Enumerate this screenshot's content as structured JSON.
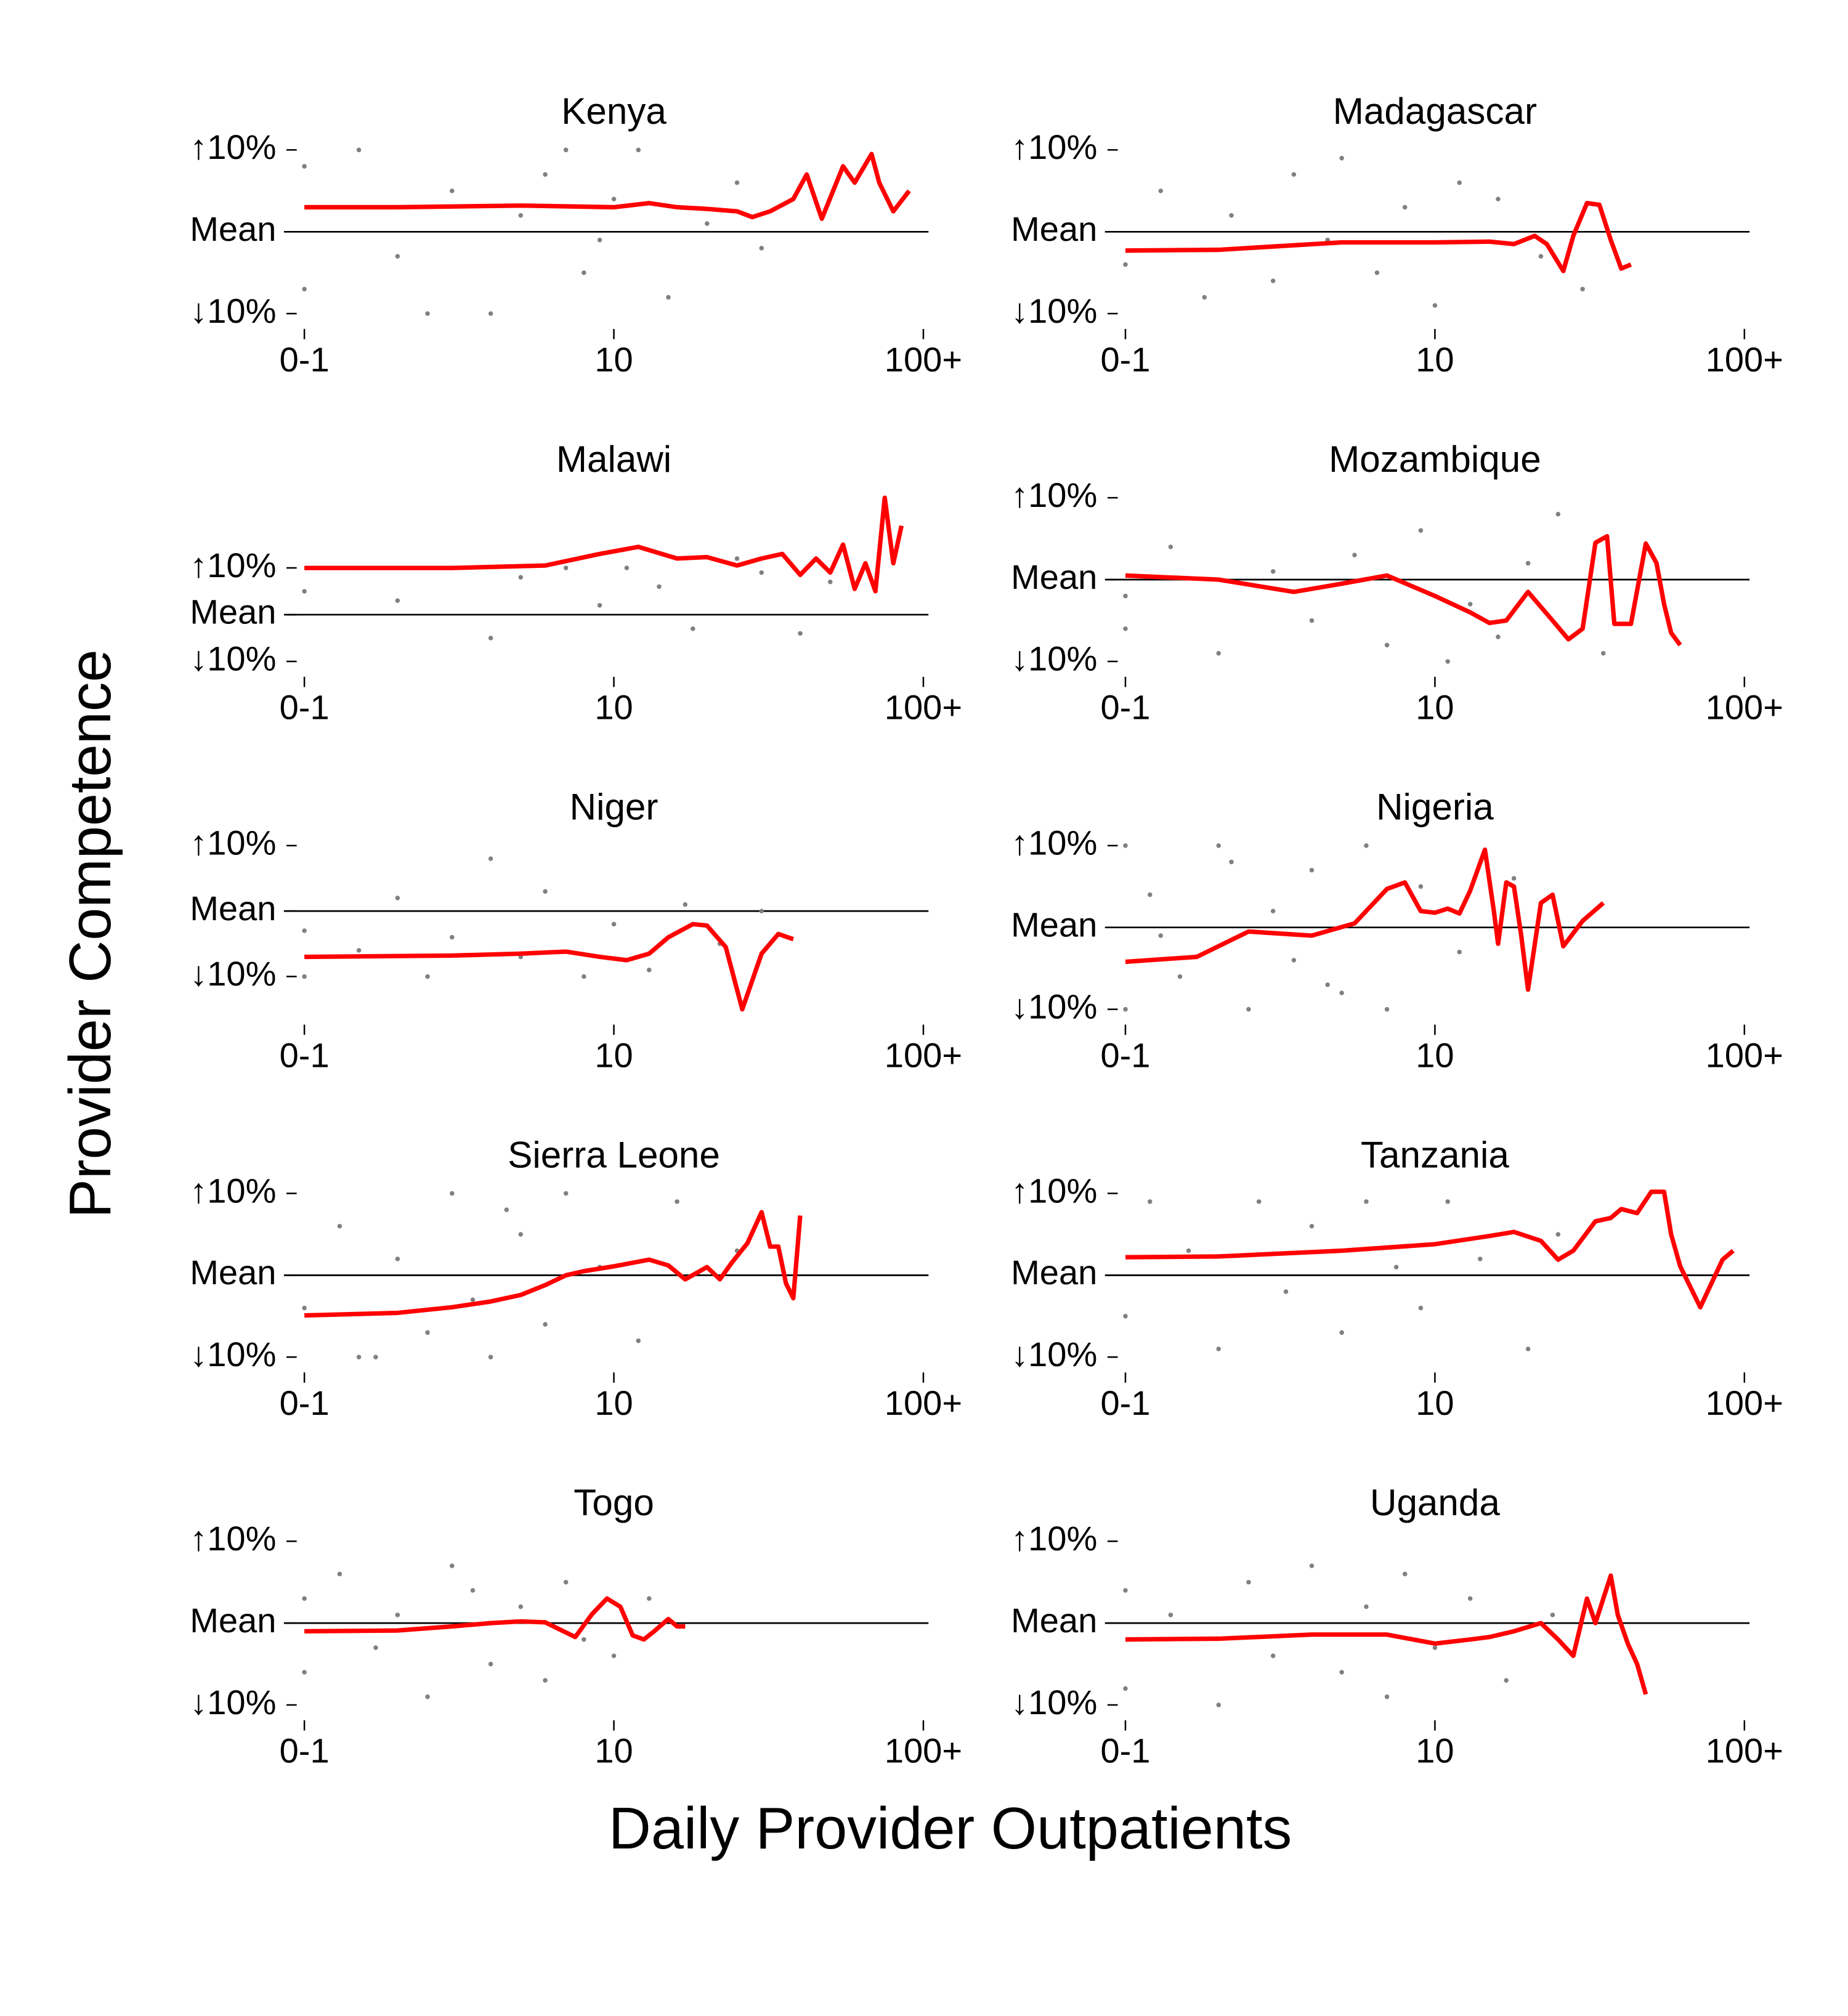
{
  "xlabel": "Daily Provider Outpatients",
  "ylabel": "Provider Competence",
  "chart_data": [
    {
      "type": "scatter",
      "title": "Kenya",
      "xscale": "log",
      "xlim": [
        1,
        100
      ],
      "ylim": [
        -10,
        10
      ],
      "xticks": [
        {
          "value": 1,
          "label": "0-1"
        },
        10,
        {
          "value": 100,
          "label": "100+"
        }
      ],
      "yticks": [
        {
          "value": 10,
          "label": "↑10%"
        },
        {
          "value": 0,
          "label": "Mean"
        },
        {
          "value": -10,
          "label": "↓10%"
        }
      ],
      "reference_line": 0,
      "points": {
        "color": "#808080",
        "x": [
          1,
          1,
          1.5,
          2,
          3,
          4,
          5,
          6,
          8,
          10,
          12,
          15,
          20,
          25,
          30,
          2.5,
          7,
          9
        ],
        "y": [
          8,
          -7,
          10,
          -3,
          5,
          -10,
          2,
          7,
          -5,
          4,
          10,
          -8,
          1,
          6,
          -2,
          -10,
          10,
          -1
        ]
      },
      "trend": {
        "color": "#ff0000",
        "x": [
          1,
          2,
          5,
          10,
          13,
          16,
          20,
          25,
          28,
          32,
          38,
          42,
          47,
          55,
          60,
          68,
          72,
          80,
          90
        ],
        "y": [
          3,
          3,
          3.2,
          3,
          3.5,
          3,
          2.8,
          2.5,
          1.8,
          2.5,
          4,
          7,
          1.6,
          8,
          6,
          9.5,
          6,
          2.5,
          5
        ]
      }
    },
    {
      "type": "scatter",
      "title": "Madagascar",
      "xscale": "log",
      "xlim": [
        1,
        100
      ],
      "ylim": [
        -10,
        10
      ],
      "xticks": [
        {
          "value": 1,
          "label": "0-1"
        },
        10,
        {
          "value": 100,
          "label": "100+"
        }
      ],
      "yticks": [
        {
          "value": 10,
          "label": "↑10%"
        },
        {
          "value": 0,
          "label": "Mean"
        },
        {
          "value": -10,
          "label": "↓10%"
        }
      ],
      "reference_line": 0,
      "points": {
        "color": "#808080",
        "x": [
          1,
          1.3,
          1.8,
          2.2,
          3,
          3.5,
          4.5,
          5,
          6.5,
          8,
          10,
          12,
          16,
          22,
          30
        ],
        "y": [
          -4,
          5,
          -8,
          2,
          -6,
          7,
          -1,
          9,
          -5,
          3,
          -9,
          6,
          4,
          -3,
          -7
        ]
      },
      "trend": {
        "color": "#ff0000",
        "x": [
          1,
          2,
          5,
          10,
          15,
          18,
          21,
          23,
          26,
          28,
          31,
          34,
          37,
          40,
          43
        ],
        "y": [
          -2.3,
          -2.2,
          -1.3,
          -1.3,
          -1.2,
          -1.5,
          -0.5,
          -1.5,
          -4.8,
          -0.5,
          3.5,
          3.3,
          -1,
          -4.5,
          -4
        ]
      }
    },
    {
      "type": "scatter",
      "title": "Malawi",
      "xscale": "log",
      "xlim": [
        1,
        100
      ],
      "ylim": [
        -10,
        25
      ],
      "xticks": [
        {
          "value": 1,
          "label": "0-1"
        },
        10,
        {
          "value": 100,
          "label": "100+"
        }
      ],
      "yticks": [
        {
          "value": 10,
          "label": "↑10%"
        },
        {
          "value": 0,
          "label": "Mean"
        },
        {
          "value": -10,
          "label": "↓10%"
        }
      ],
      "reference_line": 0,
      "points": {
        "color": "#808080",
        "x": [
          1,
          1.5,
          2,
          3,
          4,
          5,
          7,
          9,
          11,
          14,
          18,
          25,
          30,
          40,
          50
        ],
        "y": [
          5,
          10,
          3,
          10,
          -5,
          8,
          10,
          2,
          10,
          6,
          -3,
          12,
          9,
          -4,
          7
        ]
      },
      "trend": {
        "color": "#ff0000",
        "x": [
          1,
          3,
          6,
          9,
          12,
          16,
          20,
          25,
          30,
          35,
          40,
          45,
          50,
          55,
          60,
          65,
          70,
          75,
          80,
          85
        ],
        "y": [
          10,
          10,
          10.5,
          13,
          14.5,
          12,
          12.3,
          10.5,
          12,
          13,
          8.5,
          12,
          9,
          15,
          5.5,
          11,
          5,
          25,
          11,
          19
        ]
      }
    },
    {
      "type": "scatter",
      "title": "Mozambique",
      "xscale": "log",
      "xlim": [
        1,
        100
      ],
      "ylim": [
        -10,
        10
      ],
      "xticks": [
        {
          "value": 1,
          "label": "0-1"
        },
        10,
        {
          "value": 100,
          "label": "100+"
        }
      ],
      "yticks": [
        {
          "value": 10,
          "label": "↑10%"
        },
        {
          "value": 0,
          "label": "Mean"
        },
        {
          "value": -10,
          "label": "↓10%"
        }
      ],
      "reference_line": 0,
      "points": {
        "color": "#808080",
        "x": [
          1,
          1,
          1.4,
          2,
          3,
          4,
          5.5,
          7,
          9,
          11,
          13,
          16,
          20,
          25,
          35
        ],
        "y": [
          -2,
          -6,
          4,
          -9,
          1,
          -5,
          3,
          -8,
          6,
          -10,
          -3,
          -7,
          2,
          8,
          -9
        ]
      },
      "trend": {
        "color": "#ff0000",
        "x": [
          1,
          2,
          3.5,
          5,
          7,
          10,
          13,
          15,
          17,
          20,
          24,
          27,
          30,
          33,
          36,
          38,
          43,
          48,
          52,
          55,
          58,
          62
        ],
        "y": [
          0.5,
          0,
          -1.5,
          -0.5,
          0.5,
          -2,
          -4,
          -5.3,
          -5,
          -1.5,
          -5,
          -7.3,
          -6,
          4.5,
          5.3,
          -5.4,
          -5.4,
          4.4,
          2,
          -3,
          -6.5,
          -8
        ]
      }
    },
    {
      "type": "scatter",
      "title": "Niger",
      "xscale": "log",
      "xlim": [
        1,
        100
      ],
      "ylim": [
        -15,
        10
      ],
      "xticks": [
        {
          "value": 1,
          "label": "0-1"
        },
        10,
        {
          "value": 100,
          "label": "100+"
        }
      ],
      "yticks": [
        {
          "value": 10,
          "label": "↑10%"
        },
        {
          "value": 0,
          "label": "Mean"
        },
        {
          "value": -10,
          "label": "↓10%"
        }
      ],
      "reference_line": 0,
      "points": {
        "color": "#808080",
        "x": [
          1,
          1,
          1.5,
          2,
          2.5,
          3,
          4,
          5,
          6,
          8,
          10,
          13,
          17,
          22,
          30
        ],
        "y": [
          -3,
          -10,
          -6,
          2,
          -10,
          -4,
          8,
          -7,
          3,
          -10,
          -2,
          -9,
          1,
          -5,
          0
        ]
      },
      "trend": {
        "color": "#ff0000",
        "x": [
          1,
          3,
          5,
          7,
          9,
          11,
          13,
          15,
          18,
          20,
          23,
          26,
          30,
          34,
          38
        ],
        "y": [
          -7,
          -6.8,
          -6.5,
          -6.2,
          -7,
          -7.5,
          -6.5,
          -4,
          -2,
          -2.2,
          -5.5,
          -15,
          -6.5,
          -3.5,
          -4.3
        ]
      }
    },
    {
      "type": "scatter",
      "title": "Nigeria",
      "xscale": "log",
      "xlim": [
        1,
        100
      ],
      "ylim": [
        -10,
        10
      ],
      "xticks": [
        {
          "value": 1,
          "label": "0-1"
        },
        10,
        {
          "value": 100,
          "label": "100+"
        }
      ],
      "yticks": [
        {
          "value": 10,
          "label": "↑10%"
        },
        {
          "value": 0,
          "label": "Mean"
        },
        {
          "value": -10,
          "label": "↓10%"
        }
      ],
      "reference_line": 0,
      "points": {
        "color": "#808080",
        "x": [
          1,
          1,
          1.2,
          1.5,
          2,
          2.5,
          3,
          3.5,
          4,
          5,
          6,
          7,
          9,
          12,
          18,
          1.3,
          2.2,
          4.5
        ],
        "y": [
          10,
          -10,
          4,
          -6,
          10,
          -10,
          2,
          -4,
          7,
          -8,
          10,
          -10,
          5,
          -3,
          6,
          -1,
          8,
          -7
        ]
      },
      "trend": {
        "color": "#ff0000",
        "x": [
          1,
          1.7,
          2.5,
          4,
          5.5,
          7,
          8,
          9,
          10,
          11,
          12,
          13,
          14.5,
          15.5,
          16,
          17,
          18,
          19,
          20,
          22,
          24,
          26,
          30,
          35
        ],
        "y": [
          -4.2,
          -3.6,
          -0.5,
          -1,
          0.5,
          4.7,
          5.5,
          2,
          1.8,
          2.3,
          1.7,
          4.5,
          9.5,
          2,
          -2,
          5.5,
          5,
          -1,
          -7.6,
          3,
          4,
          -2.3,
          0.8,
          3
        ]
      }
    },
    {
      "type": "scatter",
      "title": "Sierra Leone",
      "xscale": "log",
      "xlim": [
        1,
        100
      ],
      "ylim": [
        -10,
        10
      ],
      "xticks": [
        {
          "value": 1,
          "label": "0-1"
        },
        10,
        {
          "value": 100,
          "label": "100+"
        }
      ],
      "yticks": [
        {
          "value": 10,
          "label": "↑10%"
        },
        {
          "value": 0,
          "label": "Mean"
        },
        {
          "value": -10,
          "label": "↓10%"
        }
      ],
      "reference_line": 0,
      "points": {
        "color": "#808080",
        "x": [
          1,
          1.3,
          1.7,
          2,
          2.5,
          3,
          3.5,
          4,
          5,
          6,
          7,
          9,
          12,
          16,
          25,
          1.5,
          4.5
        ],
        "y": [
          -4,
          6,
          -10,
          2,
          -7,
          10,
          -3,
          -10,
          5,
          -6,
          10,
          1,
          -8,
          9,
          3,
          -10,
          8
        ]
      },
      "trend": {
        "color": "#ff0000",
        "x": [
          1,
          2,
          3,
          4,
          5,
          6,
          7,
          8,
          10,
          13,
          15,
          17,
          20,
          22,
          24,
          27,
          30,
          32,
          34,
          36,
          38,
          40
        ],
        "y": [
          -4.9,
          -4.6,
          -3.9,
          -3.2,
          -2.4,
          -1.2,
          0,
          0.5,
          1.1,
          1.9,
          1.2,
          -0.5,
          1,
          -0.5,
          1.5,
          3.9,
          7.7,
          3.5,
          3.5,
          -1,
          -2.8,
          7.3
        ]
      }
    },
    {
      "type": "scatter",
      "title": "Tanzania",
      "xscale": "log",
      "xlim": [
        1,
        100
      ],
      "ylim": [
        -10,
        10
      ],
      "xticks": [
        {
          "value": 1,
          "label": "0-1"
        },
        10,
        {
          "value": 100,
          "label": "100+"
        }
      ],
      "yticks": [
        {
          "value": 10,
          "label": "↑10%"
        },
        {
          "value": 0,
          "label": "Mean"
        },
        {
          "value": -10,
          "label": "↓10%"
        }
      ],
      "reference_line": 0,
      "points": {
        "color": "#808080",
        "x": [
          1,
          1.2,
          1.6,
          2,
          2.7,
          3.3,
          4,
          5,
          6,
          7.5,
          9,
          11,
          14,
          20,
          25
        ],
        "y": [
          -5,
          9,
          3,
          -9,
          9,
          -2,
          6,
          -7,
          9,
          1,
          -4,
          9,
          2,
          -9,
          5
        ]
      },
      "trend": {
        "color": "#ff0000",
        "x": [
          1,
          2,
          5,
          10,
          15,
          18,
          22,
          25,
          28,
          33,
          37,
          40,
          45,
          50,
          55,
          58,
          62,
          72,
          85,
          92
        ],
        "y": [
          2.2,
          2.3,
          3,
          3.8,
          4.8,
          5.3,
          4.2,
          1.9,
          3,
          6.6,
          7,
          8.1,
          7.6,
          10.2,
          10.2,
          5,
          1.1,
          -3.9,
          1.9,
          3
        ]
      }
    },
    {
      "type": "scatter",
      "title": "Togo",
      "xscale": "log",
      "xlim": [
        1,
        100
      ],
      "ylim": [
        -10,
        10
      ],
      "xticks": [
        {
          "value": 1,
          "label": "0-1"
        },
        10,
        {
          "value": 100,
          "label": "100+"
        }
      ],
      "yticks": [
        {
          "value": 10,
          "label": "↑10%"
        },
        {
          "value": 0,
          "label": "Mean"
        },
        {
          "value": -10,
          "label": "↓10%"
        }
      ],
      "reference_line": 0,
      "points": {
        "color": "#808080",
        "x": [
          1,
          1,
          1.3,
          1.7,
          2,
          2.5,
          3,
          3.5,
          4,
          5,
          6,
          7,
          8,
          10,
          13
        ],
        "y": [
          3,
          -6,
          6,
          -3,
          1,
          -9,
          7,
          4,
          -5,
          2,
          -7,
          5,
          -2,
          -4,
          3
        ]
      },
      "trend": {
        "color": "#ff0000",
        "x": [
          1,
          2,
          3,
          4,
          5,
          6,
          7.5,
          8.5,
          9.5,
          10.5,
          11.5,
          12.5,
          13.5,
          15,
          16,
          17
        ],
        "y": [
          -1,
          -0.9,
          -0.4,
          0,
          0.2,
          0.1,
          -1.7,
          1.1,
          3,
          2,
          -1.5,
          -2,
          -1,
          0.5,
          -0.4,
          -0.4
        ]
      }
    },
    {
      "type": "scatter",
      "title": "Uganda",
      "xscale": "log",
      "xlim": [
        1,
        100
      ],
      "ylim": [
        -10,
        10
      ],
      "xticks": [
        {
          "value": 1,
          "label": "0-1"
        },
        10,
        {
          "value": 100,
          "label": "100+"
        }
      ],
      "yticks": [
        {
          "value": 10,
          "label": "↑10%"
        },
        {
          "value": 0,
          "label": "Mean"
        },
        {
          "value": -10,
          "label": "↓10%"
        }
      ],
      "reference_line": 0,
      "points": {
        "color": "#808080",
        "x": [
          1,
          1,
          1.4,
          2,
          2.5,
          3,
          4,
          5,
          6,
          7,
          8,
          10,
          13,
          17,
          24
        ],
        "y": [
          4,
          -8,
          1,
          -10,
          5,
          -4,
          7,
          -6,
          2,
          -9,
          6,
          -3,
          3,
          -7,
          1
        ]
      },
      "trend": {
        "color": "#ff0000",
        "x": [
          1,
          2,
          4,
          7,
          10,
          13,
          15,
          18,
          22,
          25,
          28,
          31,
          33,
          35,
          37,
          39,
          42,
          45,
          48
        ],
        "y": [
          -2,
          -1.9,
          -1.4,
          -1.4,
          -2.5,
          -2,
          -1.7,
          -1,
          0,
          -2,
          -4,
          3,
          0,
          3,
          5.8,
          1,
          -2.5,
          -5,
          -8.7
        ]
      }
    }
  ]
}
